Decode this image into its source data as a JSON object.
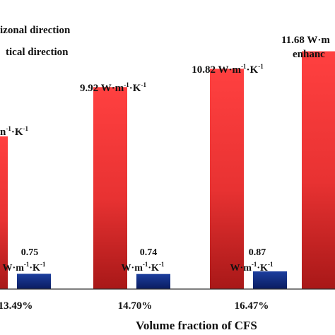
{
  "chart_data": {
    "type": "bar",
    "xlabel": "Volume fraction of CFS",
    "categories": [
      "13.49%",
      "14.70%",
      "16.47%",
      ""
    ],
    "series": [
      {
        "name": "Horizonal direction",
        "values": [
          7.5,
          9.92,
          10.82,
          11.68
        ],
        "labels": [
          "",
          "9.92 W·m",
          "10.82 W·m",
          "11.68 W·m"
        ],
        "label_tail": [
          "",
          "-1",
          "-1",
          ""
        ],
        "label_end": [
          "",
          "·K",
          "·K",
          ""
        ],
        "label_end_tail": [
          "",
          "-1",
          "-1",
          ""
        ],
        "gradient": [
          "#ff3b3b",
          "#b01a1a"
        ]
      },
      {
        "name": "Vertical direction",
        "values": [
          0.75,
          0.74,
          0.87,
          null
        ],
        "labels": [
          "0.75",
          "0.74",
          "0.87",
          ""
        ],
        "gradient": [
          "#1a3a9a",
          "#0b1f66"
        ]
      }
    ],
    "ylim": [
      0,
      14.2
    ],
    "legend": [
      "izonal direction",
      "tical direction"
    ],
    "partial_labels": {
      "first_red_visible": "n",
      "first_red_sup": "-1",
      "first_red_rest": "·K",
      "first_red_rest_sup": "-1",
      "blue_unit": "W·m",
      "blue_unit_sup1": "-1",
      "blue_unit_mid": "·K",
      "blue_unit_sup2": "-1",
      "enhance_text": "enhanc"
    },
    "axis_line": true,
    "grid": false
  }
}
